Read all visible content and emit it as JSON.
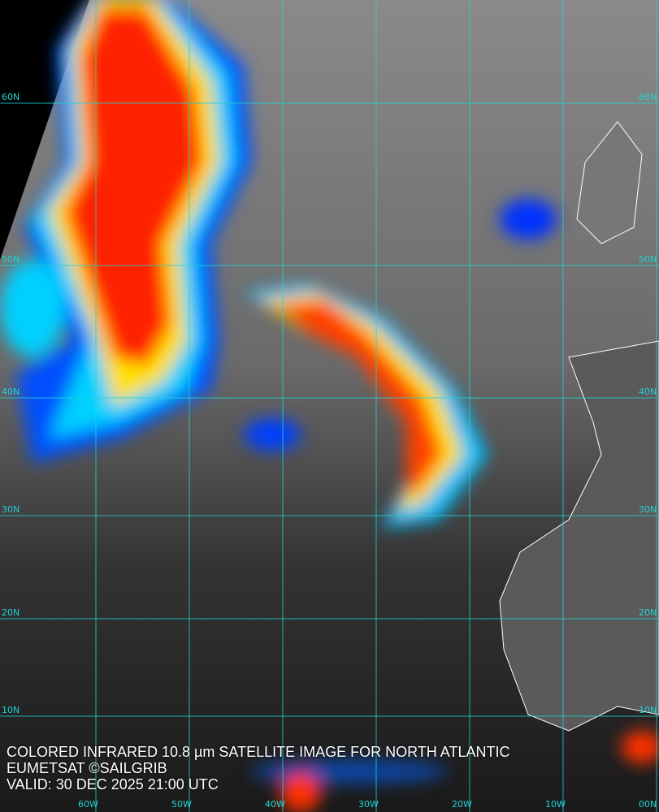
{
  "caption": {
    "title": "COLORED INFRARED 10.8 µm SATELLITE IMAGE FOR NORTH ATLANTIC",
    "credit": "EUMETSAT ©SAILGRIB",
    "valid": "VALID:  30 DEC 2025 21:00 UTC"
  },
  "graticule": {
    "longitude_labels": [
      "60W",
      "50W",
      "40W",
      "30W",
      "20W",
      "10W",
      "00N"
    ],
    "latitude_labels": [
      "60N",
      "50N",
      "40N",
      "30N",
      "20N",
      "10N"
    ],
    "grid_color": "#22d3d3"
  },
  "colors": {
    "cold_cloud_top": "#ff2000",
    "mid_cloud": "#ffe000",
    "warm_cloud": "#00c0ff",
    "low_cloud": "#0030ff",
    "coastline": "#ffffff",
    "ocean": "#3a3a3a"
  }
}
